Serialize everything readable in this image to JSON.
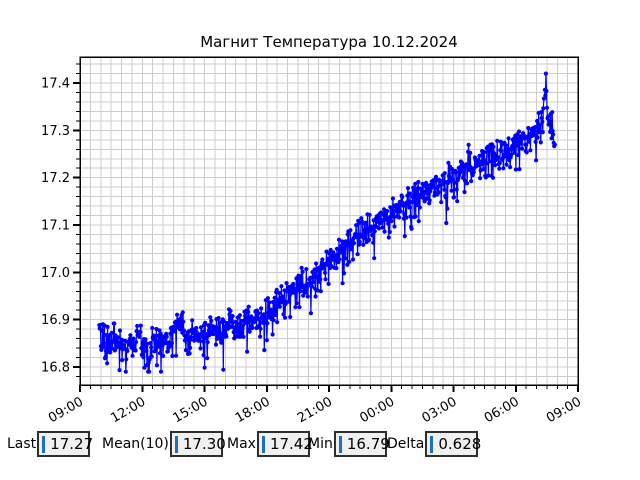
{
  "window": {
    "bg": "#ffffff"
  },
  "chart_data": {
    "type": "line",
    "title": "Магнит Температура 10.12.2024",
    "xlabel": "",
    "ylabel": "",
    "x_unit": "time HH:MM, 24 h span starting 09:00 on 10.12.2024",
    "x_range_hours": [
      9,
      33
    ],
    "x_major_tick_hours": 3,
    "x_minor_tick_hours": 0.5,
    "x_tick_labels": [
      "09:00",
      "12:00",
      "15:00",
      "18:00",
      "21:00",
      "00:00",
      "03:00",
      "06:00",
      "09:00"
    ],
    "ylim": [
      16.762,
      17.455
    ],
    "y_major_ticks": [
      16.8,
      16.9,
      17.0,
      17.1,
      17.2,
      17.3,
      17.4
    ],
    "y_tick_labels": [
      "16.8",
      "16.9",
      "17.0",
      "17.1",
      "17.2",
      "17.3",
      "17.4"
    ],
    "y_minor_step": 0.02,
    "grid": true,
    "grid_color": "#cdcdcd",
    "spine_color": "#000000",
    "legend": "none",
    "series": [
      {
        "name": "Магнит Температура",
        "color": "#0000ff",
        "style": "line+markers",
        "marker": "circle",
        "data_start_hour": 9.93,
        "data_end_hour": 31.9,
        "sample_interval_hours": 0.025,
        "noise_amplitude": 0.05,
        "dip_probability": 0.1,
        "trend": [
          [
            9.93,
            16.88
          ],
          [
            10.3,
            16.85
          ],
          [
            10.7,
            16.87
          ],
          [
            11.0,
            16.83
          ],
          [
            11.3,
            16.84
          ],
          [
            11.7,
            16.86
          ],
          [
            12.0,
            16.85
          ],
          [
            12.3,
            16.83
          ],
          [
            12.7,
            16.86
          ],
          [
            13.0,
            16.84
          ],
          [
            13.4,
            16.87
          ],
          [
            13.8,
            16.9
          ],
          [
            14.2,
            16.86
          ],
          [
            14.6,
            16.88
          ],
          [
            15.0,
            16.86
          ],
          [
            15.4,
            16.88
          ],
          [
            15.8,
            16.87
          ],
          [
            16.2,
            16.89
          ],
          [
            16.6,
            16.88
          ],
          [
            17.0,
            16.89
          ],
          [
            17.4,
            16.9
          ],
          [
            17.8,
            16.91
          ],
          [
            18.2,
            16.92
          ],
          [
            18.6,
            16.94
          ],
          [
            19.0,
            16.95
          ],
          [
            19.5,
            16.97
          ],
          [
            20.0,
            16.98
          ],
          [
            20.5,
            17.0
          ],
          [
            21.0,
            17.02
          ],
          [
            21.5,
            17.04
          ],
          [
            22.0,
            17.06
          ],
          [
            22.5,
            17.08
          ],
          [
            23.0,
            17.09
          ],
          [
            23.5,
            17.11
          ],
          [
            24.0,
            17.12
          ],
          [
            24.5,
            17.14
          ],
          [
            25.0,
            17.15
          ],
          [
            25.5,
            17.17
          ],
          [
            26.0,
            17.18
          ],
          [
            26.5,
            17.19
          ],
          [
            27.0,
            17.2
          ],
          [
            27.5,
            17.22
          ],
          [
            28.0,
            17.23
          ],
          [
            28.5,
            17.24
          ],
          [
            29.0,
            17.25
          ],
          [
            29.5,
            17.26
          ],
          [
            30.0,
            17.27
          ],
          [
            30.5,
            17.28
          ],
          [
            31.0,
            17.3
          ],
          [
            31.3,
            17.33
          ],
          [
            31.45,
            17.4
          ],
          [
            31.55,
            17.32
          ],
          [
            31.75,
            17.3
          ],
          [
            31.9,
            17.28
          ]
        ],
        "spike_hour": 31.45,
        "min_hour": 11.2,
        "stats": {
          "last": 17.27,
          "mean10": 17.3,
          "max": 17.42,
          "min": 16.79,
          "delta": 0.628
        }
      }
    ]
  },
  "stats_bar": {
    "entry_bg": "#f0f0f0",
    "entry_border": "#2e2e2e",
    "cursor_color": "#1f6fc0",
    "items": [
      {
        "label": "Last",
        "value": "17.27"
      },
      {
        "label": "Mean(10)",
        "value": "17.30"
      },
      {
        "label": "Max",
        "value": "17.42"
      },
      {
        "label": "Min",
        "value": "16.79"
      },
      {
        "label": "Delta",
        "value": "0.628"
      }
    ]
  }
}
